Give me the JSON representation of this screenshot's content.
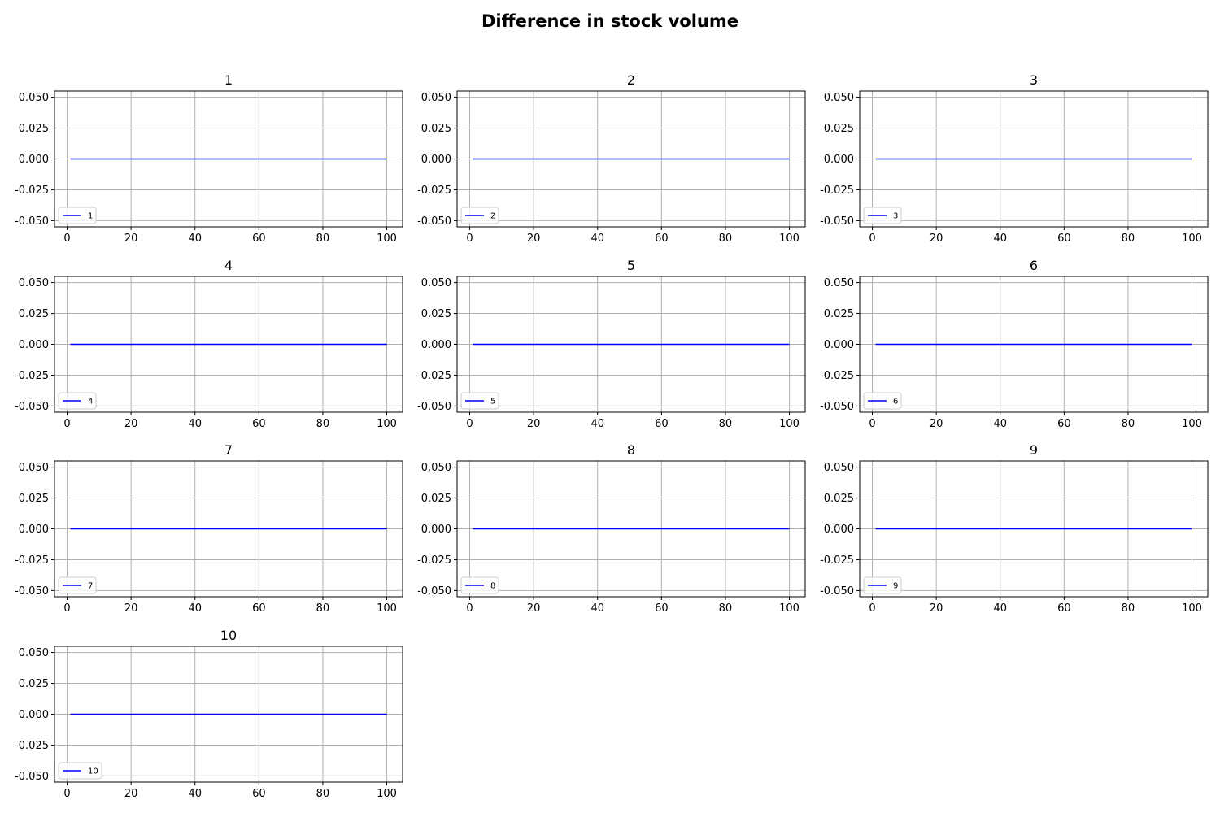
{
  "figure": {
    "title": "Difference in stock volume",
    "line_color": "#0000ff",
    "grid_color": "#b0b0b0"
  },
  "chart_data": [
    {
      "type": "line",
      "title": "1",
      "x": [
        1,
        100
      ],
      "series": [
        {
          "name": "1",
          "values": [
            0,
            0
          ]
        }
      ],
      "xlim": [
        -3.95,
        104.95
      ],
      "ylim": [
        -0.055,
        0.055
      ],
      "xticks": [
        "0",
        "20",
        "40",
        "60",
        "80",
        "100"
      ],
      "yticks": [
        "0.050",
        "0.025",
        "0.000",
        "-0.025",
        "-0.050"
      ],
      "grid": true,
      "legend": "lower-left"
    },
    {
      "type": "line",
      "title": "2",
      "x": [
        1,
        100
      ],
      "series": [
        {
          "name": "2",
          "values": [
            0,
            0
          ]
        }
      ],
      "xlim": [
        -3.95,
        104.95
      ],
      "ylim": [
        -0.055,
        0.055
      ],
      "xticks": [
        "0",
        "20",
        "40",
        "60",
        "80",
        "100"
      ],
      "yticks": [
        "0.050",
        "0.025",
        "0.000",
        "-0.025",
        "-0.050"
      ],
      "grid": true,
      "legend": "lower-left"
    },
    {
      "type": "line",
      "title": "3",
      "x": [
        1,
        100
      ],
      "series": [
        {
          "name": "3",
          "values": [
            0,
            0
          ]
        }
      ],
      "xlim": [
        -3.95,
        104.95
      ],
      "ylim": [
        -0.055,
        0.055
      ],
      "xticks": [
        "0",
        "20",
        "40",
        "60",
        "80",
        "100"
      ],
      "yticks": [
        "0.050",
        "0.025",
        "0.000",
        "-0.025",
        "-0.050"
      ],
      "grid": true,
      "legend": "lower-left"
    },
    {
      "type": "line",
      "title": "4",
      "x": [
        1,
        100
      ],
      "series": [
        {
          "name": "4",
          "values": [
            0,
            0
          ]
        }
      ],
      "xlim": [
        -3.95,
        104.95
      ],
      "ylim": [
        -0.055,
        0.055
      ],
      "xticks": [
        "0",
        "20",
        "40",
        "60",
        "80",
        "100"
      ],
      "yticks": [
        "0.050",
        "0.025",
        "0.000",
        "-0.025",
        "-0.050"
      ],
      "grid": true,
      "legend": "lower-left"
    },
    {
      "type": "line",
      "title": "5",
      "x": [
        1,
        100
      ],
      "series": [
        {
          "name": "5",
          "values": [
            0,
            0
          ]
        }
      ],
      "xlim": [
        -3.95,
        104.95
      ],
      "ylim": [
        -0.055,
        0.055
      ],
      "xticks": [
        "0",
        "20",
        "40",
        "60",
        "80",
        "100"
      ],
      "yticks": [
        "0.050",
        "0.025",
        "0.000",
        "-0.025",
        "-0.050"
      ],
      "grid": true,
      "legend": "lower-left"
    },
    {
      "type": "line",
      "title": "6",
      "x": [
        1,
        100
      ],
      "series": [
        {
          "name": "6",
          "values": [
            0,
            0
          ]
        }
      ],
      "xlim": [
        -3.95,
        104.95
      ],
      "ylim": [
        -0.055,
        0.055
      ],
      "xticks": [
        "0",
        "20",
        "40",
        "60",
        "80",
        "100"
      ],
      "yticks": [
        "0.050",
        "0.025",
        "0.000",
        "-0.025",
        "-0.050"
      ],
      "grid": true,
      "legend": "lower-left"
    },
    {
      "type": "line",
      "title": "7",
      "x": [
        1,
        100
      ],
      "series": [
        {
          "name": "7",
          "values": [
            0,
            0
          ]
        }
      ],
      "xlim": [
        -3.95,
        104.95
      ],
      "ylim": [
        -0.055,
        0.055
      ],
      "xticks": [
        "0",
        "20",
        "40",
        "60",
        "80",
        "100"
      ],
      "yticks": [
        "0.050",
        "0.025",
        "0.000",
        "-0.025",
        "-0.050"
      ],
      "grid": true,
      "legend": "lower-left"
    },
    {
      "type": "line",
      "title": "8",
      "x": [
        1,
        100
      ],
      "series": [
        {
          "name": "8",
          "values": [
            0,
            0
          ]
        }
      ],
      "xlim": [
        -3.95,
        104.95
      ],
      "ylim": [
        -0.055,
        0.055
      ],
      "xticks": [
        "0",
        "20",
        "40",
        "60",
        "80",
        "100"
      ],
      "yticks": [
        "0.050",
        "0.025",
        "0.000",
        "-0.025",
        "-0.050"
      ],
      "grid": true,
      "legend": "lower-left"
    },
    {
      "type": "line",
      "title": "9",
      "x": [
        1,
        100
      ],
      "series": [
        {
          "name": "9",
          "values": [
            0,
            0
          ]
        }
      ],
      "xlim": [
        -3.95,
        104.95
      ],
      "ylim": [
        -0.055,
        0.055
      ],
      "xticks": [
        "0",
        "20",
        "40",
        "60",
        "80",
        "100"
      ],
      "yticks": [
        "0.050",
        "0.025",
        "0.000",
        "-0.025",
        "-0.050"
      ],
      "grid": true,
      "legend": "lower-left"
    },
    {
      "type": "line",
      "title": "10",
      "x": [
        1,
        100
      ],
      "series": [
        {
          "name": "10",
          "values": [
            0,
            0
          ]
        }
      ],
      "xlim": [
        -3.95,
        104.95
      ],
      "ylim": [
        -0.055,
        0.055
      ],
      "xticks": [
        "0",
        "20",
        "40",
        "60",
        "80",
        "100"
      ],
      "yticks": [
        "0.050",
        "0.025",
        "0.000",
        "-0.025",
        "-0.050"
      ],
      "grid": true,
      "legend": "lower-left"
    }
  ]
}
